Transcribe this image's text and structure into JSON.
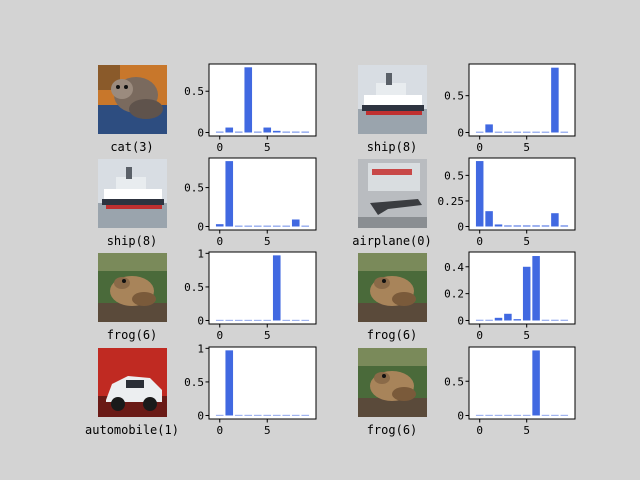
{
  "colors": {
    "background": "#d3d3d3",
    "bar": "#4169e1",
    "axes_face": "#ffffff",
    "axes_edge": "#000000"
  },
  "chart_data": [
    {
      "type": "bar",
      "image": "cat-thumbnail",
      "caption": "cat(3)",
      "categories": [
        0,
        1,
        2,
        3,
        4,
        5,
        6,
        7,
        8,
        9
      ],
      "values": [
        0.01,
        0.06,
        0.01,
        0.79,
        0.01,
        0.06,
        0.02,
        0.01,
        0.01,
        0.01
      ],
      "ylim": [
        0,
        0.83
      ],
      "yticks": [
        {
          "v": 0,
          "t": "0"
        },
        {
          "v": 0.5,
          "t": "0.5"
        }
      ],
      "xticks": [
        {
          "v": 0,
          "t": "0"
        },
        {
          "v": 5,
          "t": "5"
        }
      ]
    },
    {
      "type": "bar",
      "image": "ship-thumbnail",
      "caption": "ship(8)",
      "categories": [
        0,
        1,
        2,
        3,
        4,
        5,
        6,
        7,
        8,
        9
      ],
      "values": [
        0.01,
        0.11,
        0.01,
        0.01,
        0.01,
        0.01,
        0.01,
        0.01,
        0.88,
        0.01
      ],
      "ylim": [
        0,
        0.93
      ],
      "yticks": [
        {
          "v": 0,
          "t": "0"
        },
        {
          "v": 0.5,
          "t": "0.5"
        }
      ],
      "xticks": [
        {
          "v": 0,
          "t": "0"
        },
        {
          "v": 5,
          "t": "5"
        }
      ]
    },
    {
      "type": "bar",
      "image": "ship-thumbnail",
      "caption": "ship(8)",
      "categories": [
        0,
        1,
        2,
        3,
        4,
        5,
        6,
        7,
        8,
        9
      ],
      "values": [
        0.03,
        0.84,
        0.01,
        0.01,
        0.01,
        0.01,
        0.01,
        0.01,
        0.09,
        0.01
      ],
      "ylim": [
        0,
        0.88
      ],
      "yticks": [
        {
          "v": 0,
          "t": "0"
        },
        {
          "v": 0.5,
          "t": "0.5"
        }
      ],
      "xticks": [
        {
          "v": 0,
          "t": "0"
        },
        {
          "v": 5,
          "t": "5"
        }
      ]
    },
    {
      "type": "bar",
      "image": "airplane-thumbnail",
      "caption": "airplane(0)",
      "categories": [
        0,
        1,
        2,
        3,
        4,
        5,
        6,
        7,
        8,
        9
      ],
      "values": [
        0.64,
        0.15,
        0.02,
        0.01,
        0.01,
        0.01,
        0.01,
        0.01,
        0.13,
        0.01
      ],
      "ylim": [
        0,
        0.67
      ],
      "yticks": [
        {
          "v": 0,
          "t": "0"
        },
        {
          "v": 0.25,
          "t": "0.25"
        },
        {
          "v": 0.5,
          "t": "0.5"
        }
      ],
      "xticks": [
        {
          "v": 0,
          "t": "0"
        },
        {
          "v": 5,
          "t": "5"
        }
      ]
    },
    {
      "type": "bar",
      "image": "frog-thumbnail",
      "caption": "frog(6)",
      "categories": [
        0,
        1,
        2,
        3,
        4,
        5,
        6,
        7,
        8,
        9
      ],
      "values": [
        0.005,
        0.005,
        0.005,
        0.005,
        0.005,
        0.005,
        0.97,
        0.005,
        0.005,
        0.005
      ],
      "ylim": [
        0,
        1.02
      ],
      "yticks": [
        {
          "v": 0,
          "t": "0"
        },
        {
          "v": 0.5,
          "t": "0.5"
        },
        {
          "v": 1,
          "t": "1"
        }
      ],
      "xticks": [
        {
          "v": 0,
          "t": "0"
        },
        {
          "v": 5,
          "t": "5"
        }
      ]
    },
    {
      "type": "bar",
      "image": "frog-thumbnail",
      "caption": "frog(6)",
      "categories": [
        0,
        1,
        2,
        3,
        4,
        5,
        6,
        7,
        8,
        9
      ],
      "values": [
        0.005,
        0.005,
        0.02,
        0.05,
        0.01,
        0.4,
        0.48,
        0.005,
        0.005,
        0.005
      ],
      "ylim": [
        0,
        0.51
      ],
      "yticks": [
        {
          "v": 0,
          "t": "0"
        },
        {
          "v": 0.2,
          "t": "0.2"
        },
        {
          "v": 0.4,
          "t": "0.4"
        }
      ],
      "xticks": [
        {
          "v": 0,
          "t": "0"
        },
        {
          "v": 5,
          "t": "5"
        }
      ]
    },
    {
      "type": "bar",
      "image": "car-thumbnail",
      "caption": "automobile(1)",
      "categories": [
        0,
        1,
        2,
        3,
        4,
        5,
        6,
        7,
        8,
        9
      ],
      "values": [
        0.005,
        0.97,
        0.005,
        0.005,
        0.005,
        0.005,
        0.005,
        0.005,
        0.005,
        0.005
      ],
      "ylim": [
        0,
        1.02
      ],
      "yticks": [
        {
          "v": 0,
          "t": "0"
        },
        {
          "v": 0.5,
          "t": "0.5"
        },
        {
          "v": 1,
          "t": "1"
        }
      ],
      "xticks": [
        {
          "v": 0,
          "t": "0"
        },
        {
          "v": 5,
          "t": "5"
        }
      ]
    },
    {
      "type": "bar",
      "image": "frog-thumbnail",
      "caption": "frog(6)",
      "categories": [
        0,
        1,
        2,
        3,
        4,
        5,
        6,
        7,
        8,
        9
      ],
      "values": [
        0.005,
        0.005,
        0.005,
        0.005,
        0.005,
        0.005,
        0.95,
        0.005,
        0.005,
        0.005
      ],
      "ylim": [
        0,
        1.0
      ],
      "yticks": [
        {
          "v": 0,
          "t": "0"
        },
        {
          "v": 0.5,
          "t": "0.5"
        }
      ],
      "xticks": [
        {
          "v": 0,
          "t": "0"
        },
        {
          "v": 5,
          "t": "5"
        }
      ]
    }
  ]
}
